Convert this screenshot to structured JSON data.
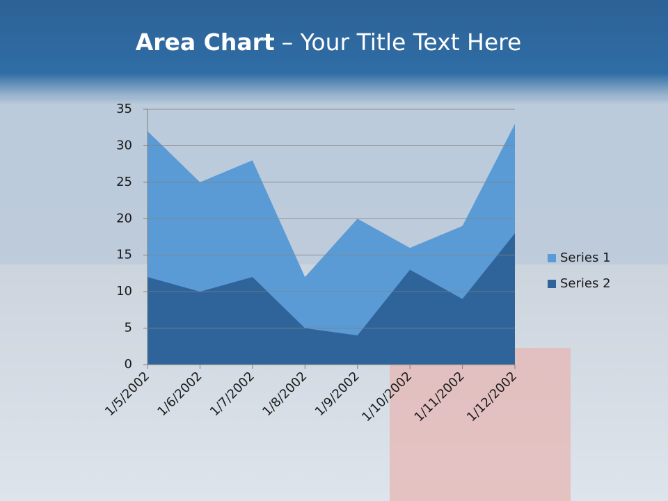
{
  "chart_data": {
    "type": "area",
    "title": "Area Chart",
    "title_rest": "– Your Title Text Here",
    "categories": [
      "1/5/2002",
      "1/6/2002",
      "1/7/2002",
      "1/8/2002",
      "1/9/2002",
      "1/10/2002",
      "1/11/2002",
      "1/12/2002"
    ],
    "series": [
      {
        "name": "Series 1",
        "color": "#5b9bd5",
        "values": [
          32,
          25,
          28,
          12,
          20,
          16,
          19,
          33
        ]
      },
      {
        "name": "Series 2",
        "color": "#2f649b",
        "values": [
          12,
          10,
          12,
          5,
          4,
          13,
          9,
          18
        ]
      }
    ],
    "ylim": [
      0,
      35
    ],
    "yticks": [
      0,
      5,
      10,
      15,
      20,
      25,
      30,
      35
    ],
    "grid": true,
    "legend": "right"
  }
}
